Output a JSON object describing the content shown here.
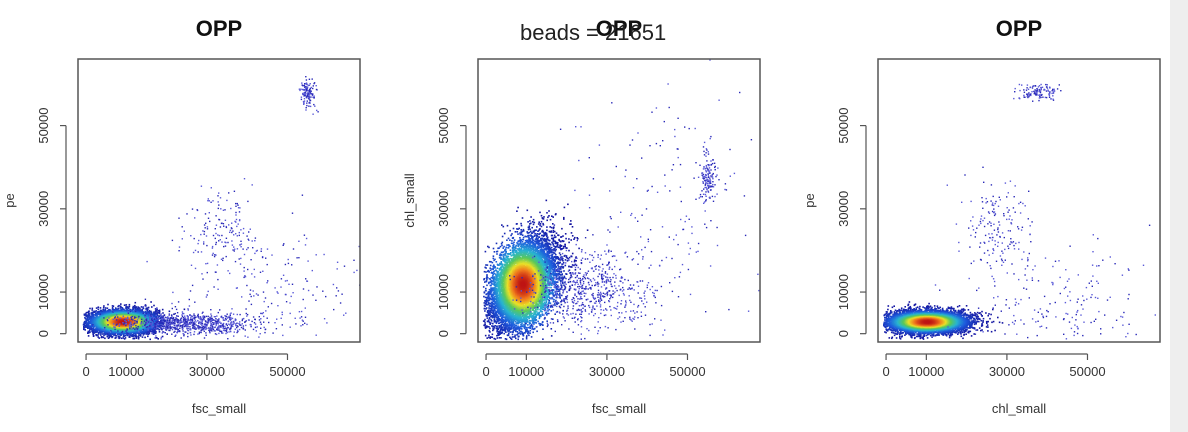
{
  "chart_data": [
    {
      "type": "scatter",
      "title": "OPP",
      "xlabel": "fsc_small",
      "ylabel": "pe",
      "xlim": [
        -2000,
        68000
      ],
      "ylim": [
        -2000,
        66000
      ],
      "xticks": [
        0,
        10000,
        30000,
        50000
      ],
      "yticks": [
        0,
        10000,
        30000,
        50000
      ],
      "clusters": [
        {
          "cx": 9000,
          "cy": 3000,
          "sx": 4200,
          "sy": 1400,
          "n": 6000,
          "dense": true
        },
        {
          "cx": 25000,
          "cy": 2500,
          "sx": 9000,
          "sy": 1300,
          "n": 900,
          "dense": false
        },
        {
          "cx": 34000,
          "cy": 25000,
          "sx": 4500,
          "sy": 5000,
          "n": 160,
          "dense": false
        },
        {
          "cx": 55000,
          "cy": 58000,
          "sx": 1000,
          "sy": 1800,
          "n": 130,
          "dense": false
        },
        {
          "cx": 45000,
          "cy": 12000,
          "sx": 12000,
          "sy": 7000,
          "n": 180,
          "dense": false
        }
      ]
    },
    {
      "type": "scatter",
      "title": "OPP",
      "xlabel": "fsc_small",
      "ylabel": "chl_small",
      "xlim": [
        -2000,
        68000
      ],
      "ylim": [
        -2000,
        66000
      ],
      "xticks": [
        0,
        10000,
        30000,
        50000
      ],
      "yticks": [
        0,
        10000,
        30000,
        50000
      ],
      "clusters": [
        {
          "cx": 9000,
          "cy": 12000,
          "sx": 4200,
          "sy": 5500,
          "rho": 0.4,
          "n": 9000,
          "dense": true
        },
        {
          "cx": 25000,
          "cy": 10000,
          "sx": 8000,
          "sy": 5000,
          "n": 700,
          "dense": false
        },
        {
          "cx": 55000,
          "cy": 38000,
          "sx": 1000,
          "sy": 3000,
          "n": 150,
          "dense": false
        },
        {
          "cx": 45000,
          "cy": 30000,
          "sx": 12000,
          "sy": 15000,
          "n": 160,
          "dense": false
        }
      ]
    },
    {
      "type": "scatter",
      "title": "OPP",
      "xlabel": "chl_small",
      "ylabel": "pe",
      "xlim": [
        -2000,
        68000
      ],
      "ylim": [
        -2000,
        66000
      ],
      "xticks": [
        0,
        10000,
        30000,
        50000
      ],
      "yticks": [
        0,
        10000,
        30000,
        50000
      ],
      "clusters": [
        {
          "cx": 10000,
          "cy": 3000,
          "sx": 5000,
          "sy": 1300,
          "n": 6500,
          "dense": true
        },
        {
          "cx": 27000,
          "cy": 25000,
          "sx": 4000,
          "sy": 6000,
          "n": 170,
          "dense": false
        },
        {
          "cx": 38000,
          "cy": 58000,
          "sx": 2500,
          "sy": 1000,
          "n": 120,
          "dense": false
        },
        {
          "cx": 45000,
          "cy": 8000,
          "sx": 12000,
          "sy": 6000,
          "n": 180,
          "dense": false
        }
      ]
    }
  ],
  "overlay_text": "beads = 21651"
}
